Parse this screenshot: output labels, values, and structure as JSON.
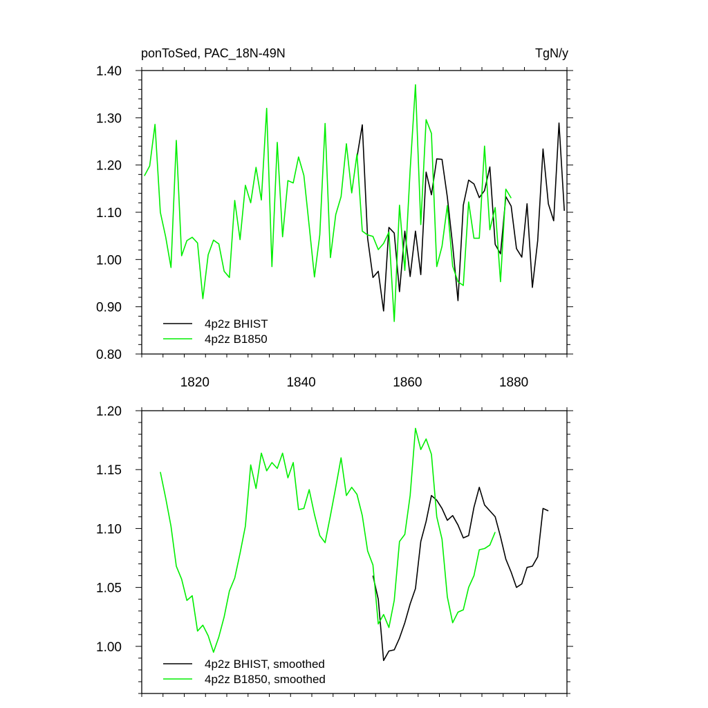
{
  "chart_data": [
    {
      "type": "line",
      "title_left": "ponToSed, PAC_18N-49N",
      "title_right": "TgN/y",
      "xlabel": "",
      "ylabel": "",
      "xlim": [
        1810,
        1890
      ],
      "ylim": [
        0.8,
        1.4
      ],
      "xticks": [
        1820,
        1840,
        1860,
        1880
      ],
      "xtick_labels": [
        "1820",
        "1840",
        "1860",
        "1880"
      ],
      "yticks": [
        0.8,
        0.9,
        1.0,
        1.1,
        1.2,
        1.3,
        1.4
      ],
      "ytick_labels": [
        "0.80",
        "0.90",
        "1.00",
        "1.10",
        "1.20",
        "1.30",
        "1.40"
      ],
      "legend_position": "bottom-left",
      "series": [
        {
          "name": "4p2z BHIST",
          "color": "#000000",
          "x": [
            1850.5,
            1851.5,
            1852.5,
            1853.5,
            1854.5,
            1855.5,
            1856.5,
            1857.5,
            1858.5,
            1859.5,
            1860.5,
            1861.5,
            1862.5,
            1863.5,
            1864.5,
            1865.5,
            1866.5,
            1867.5,
            1868.5,
            1869.5,
            1870.5,
            1871.5,
            1872.5,
            1873.5,
            1874.5,
            1875.5,
            1876.5,
            1877.5,
            1878.5,
            1879.5,
            1880.5,
            1881.5,
            1882.5,
            1883.5,
            1884.5,
            1885.5,
            1886.5,
            1887.5,
            1888.5,
            1889.5
          ],
          "values": [
            1.216,
            1.285,
            1.045,
            0.962,
            0.975,
            0.891,
            1.068,
            1.056,
            0.932,
            1.06,
            0.964,
            1.06,
            0.968,
            1.185,
            1.137,
            1.213,
            1.212,
            1.132,
            1.03,
            0.913,
            1.115,
            1.168,
            1.16,
            1.131,
            1.146,
            1.196,
            1.032,
            1.012,
            1.133,
            1.113,
            1.023,
            1.005,
            1.118,
            0.941,
            1.04,
            1.234,
            1.118,
            1.082,
            1.289,
            1.103
          ]
        },
        {
          "name": "4p2z B1850",
          "color": "#00ee00",
          "x": [
            1810.5,
            1811.5,
            1812.5,
            1813.5,
            1814.5,
            1815.5,
            1816.5,
            1817.5,
            1818.5,
            1819.5,
            1820.5,
            1821.5,
            1822.5,
            1823.5,
            1824.5,
            1825.5,
            1826.5,
            1827.5,
            1828.5,
            1829.5,
            1830.5,
            1831.5,
            1832.5,
            1833.5,
            1834.5,
            1835.5,
            1836.5,
            1837.5,
            1838.5,
            1839.5,
            1840.5,
            1841.5,
            1842.5,
            1843.5,
            1844.5,
            1845.5,
            1846.5,
            1847.5,
            1848.5,
            1849.5,
            1850.5,
            1851.5,
            1852.5,
            1853.5,
            1854.5,
            1855.5,
            1856.5,
            1857.5,
            1858.5,
            1859.5,
            1860.5,
            1861.5,
            1862.5,
            1863.5,
            1864.5,
            1865.5,
            1866.5,
            1867.5,
            1868.5,
            1869.5,
            1870.5,
            1871.5,
            1872.5,
            1873.5,
            1874.5,
            1875.5,
            1876.5,
            1877.5,
            1878.5,
            1879.5
          ],
          "values": [
            1.177,
            1.198,
            1.286,
            1.1,
            1.048,
            0.983,
            1.252,
            1.008,
            1.04,
            1.047,
            1.035,
            0.917,
            1.01,
            1.041,
            1.033,
            0.975,
            0.962,
            1.125,
            1.042,
            1.157,
            1.12,
            1.195,
            1.126,
            1.32,
            0.985,
            1.248,
            1.048,
            1.167,
            1.162,
            1.217,
            1.178,
            1.071,
            0.963,
            1.052,
            1.288,
            1.004,
            1.095,
            1.133,
            1.245,
            1.141,
            1.223,
            1.06,
            1.052,
            1.049,
            1.021,
            1.034,
            1.058,
            0.869,
            1.115,
            0.977,
            1.189,
            1.37,
            1.074,
            1.296,
            1.267,
            0.985,
            1.028,
            1.114,
            0.986,
            0.953,
            0.945,
            1.122,
            1.045,
            1.045,
            1.24,
            1.063,
            1.11,
            0.953,
            1.149,
            1.13
          ]
        }
      ]
    },
    {
      "type": "line",
      "xlabel": "",
      "ylabel": "",
      "xlim": [
        1810,
        1890
      ],
      "ylim": [
        0.96,
        1.2
      ],
      "xticks": [
        1820,
        1840,
        1860,
        1880
      ],
      "xtick_labels": [
        "",
        "",
        "",
        ""
      ],
      "yticks": [
        1.0,
        1.05,
        1.1,
        1.15,
        1.2
      ],
      "ytick_labels": [
        "1.00",
        "1.05",
        "1.10",
        "1.15",
        "1.20"
      ],
      "legend_position": "bottom-left",
      "series": [
        {
          "name": "4p2z BHIST, smoothed",
          "color": "#000000",
          "x": [
            1853.5,
            1854.5,
            1855.5,
            1856.5,
            1857.5,
            1858.5,
            1859.5,
            1860.5,
            1861.5,
            1862.5,
            1863.5,
            1864.5,
            1865.5,
            1866.5,
            1867.5,
            1868.5,
            1869.5,
            1870.5,
            1871.5,
            1872.5,
            1873.5,
            1874.5,
            1875.5,
            1876.5,
            1877.5,
            1878.5,
            1879.5,
            1880.5,
            1881.5,
            1882.5,
            1883.5,
            1884.5,
            1885.5,
            1886.5
          ],
          "values": [
            1.06,
            1.04,
            0.988,
            0.996,
            0.997,
            1.007,
            1.02,
            1.036,
            1.049,
            1.089,
            1.106,
            1.128,
            1.124,
            1.117,
            1.107,
            1.111,
            1.103,
            1.092,
            1.094,
            1.118,
            1.135,
            1.12,
            1.115,
            1.11,
            1.093,
            1.074,
            1.063,
            1.05,
            1.053,
            1.067,
            1.068,
            1.076,
            1.117,
            1.115
          ]
        },
        {
          "name": "4p2z B1850, smoothed",
          "color": "#00ee00",
          "x": [
            1813.5,
            1814.5,
            1815.5,
            1816.5,
            1817.5,
            1818.5,
            1819.5,
            1820.5,
            1821.5,
            1822.5,
            1823.5,
            1824.5,
            1825.5,
            1826.5,
            1827.5,
            1828.5,
            1829.5,
            1830.5,
            1831.5,
            1832.5,
            1833.5,
            1834.5,
            1835.5,
            1836.5,
            1837.5,
            1838.5,
            1839.5,
            1840.5,
            1841.5,
            1842.5,
            1843.5,
            1844.5,
            1845.5,
            1846.5,
            1847.5,
            1848.5,
            1849.5,
            1850.5,
            1851.5,
            1852.5,
            1853.5,
            1854.5,
            1855.5,
            1856.5,
            1857.5,
            1858.5,
            1859.5,
            1860.5,
            1861.5,
            1862.5,
            1863.5,
            1864.5,
            1865.5,
            1866.5,
            1867.5,
            1868.5,
            1869.5,
            1870.5,
            1871.5,
            1872.5,
            1873.5,
            1874.5,
            1875.5,
            1876.5
          ],
          "values": [
            1.148,
            1.126,
            1.102,
            1.068,
            1.057,
            1.039,
            1.043,
            1.013,
            1.018,
            1.009,
            0.995,
            1.008,
            1.025,
            1.047,
            1.058,
            1.079,
            1.102,
            1.154,
            1.134,
            1.164,
            1.149,
            1.156,
            1.151,
            1.164,
            1.143,
            1.156,
            1.116,
            1.117,
            1.133,
            1.112,
            1.094,
            1.088,
            1.111,
            1.135,
            1.16,
            1.128,
            1.135,
            1.129,
            1.111,
            1.081,
            1.069,
            1.019,
            1.027,
            1.016,
            1.039,
            1.089,
            1.095,
            1.128,
            1.185,
            1.167,
            1.176,
            1.163,
            1.11,
            1.091,
            1.042,
            1.02,
            1.029,
            1.031,
            1.05,
            1.06,
            1.082,
            1.083,
            1.086,
            1.097
          ]
        }
      ]
    }
  ]
}
